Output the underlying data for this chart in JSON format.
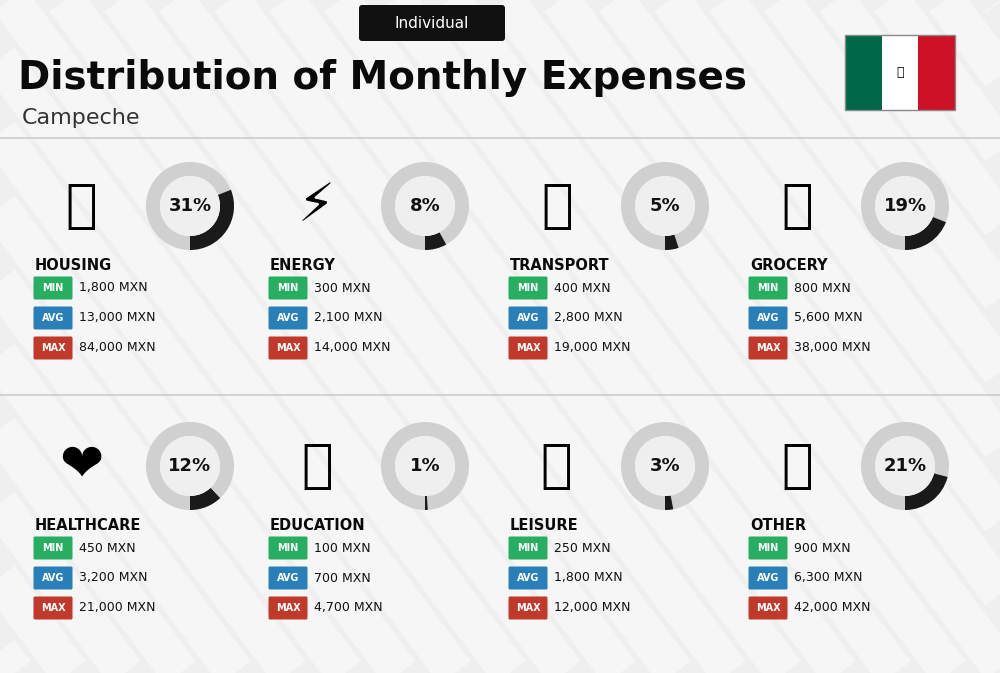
{
  "title": "Distribution of Monthly Expenses",
  "subtitle": "Individual",
  "city": "Campeche",
  "bg_color": "#efefef",
  "categories": [
    {
      "name": "HOUSING",
      "pct": 31,
      "min": "1,800 MXN",
      "avg": "13,000 MXN",
      "max": "84,000 MXN",
      "icon": "🏗️",
      "row": 0,
      "col": 0
    },
    {
      "name": "ENERGY",
      "pct": 8,
      "min": "300 MXN",
      "avg": "2,100 MXN",
      "max": "14,000 MXN",
      "icon": "⚡️",
      "row": 0,
      "col": 1
    },
    {
      "name": "TRANSPORT",
      "pct": 5,
      "min": "400 MXN",
      "avg": "2,800 MXN",
      "max": "19,000 MXN",
      "icon": "🚌",
      "row": 0,
      "col": 2
    },
    {
      "name": "GROCERY",
      "pct": 19,
      "min": "800 MXN",
      "avg": "5,600 MXN",
      "max": "38,000 MXN",
      "icon": "🛒",
      "row": 0,
      "col": 3
    },
    {
      "name": "HEALTHCARE",
      "pct": 12,
      "min": "450 MXN",
      "avg": "3,200 MXN",
      "max": "21,000 MXN",
      "icon": "❤️",
      "row": 1,
      "col": 0
    },
    {
      "name": "EDUCATION",
      "pct": 1,
      "min": "100 MXN",
      "avg": "700 MXN",
      "max": "4,700 MXN",
      "icon": "🎓",
      "row": 1,
      "col": 1
    },
    {
      "name": "LEISURE",
      "pct": 3,
      "min": "250 MXN",
      "avg": "1,800 MXN",
      "max": "12,000 MXN",
      "icon": "🛍️",
      "row": 1,
      "col": 2
    },
    {
      "name": "OTHER",
      "pct": 21,
      "min": "900 MXN",
      "avg": "6,300 MXN",
      "max": "42,000 MXN",
      "icon": "👜",
      "row": 1,
      "col": 3
    }
  ],
  "min_color": "#27ae60",
  "avg_color": "#2980b9",
  "max_color": "#c0392b",
  "text_color": "#111111",
  "donut_bg": "#d0d0d0",
  "donut_fg": "#1a1a1a",
  "flag_green": "#006847",
  "flag_white": "#ffffff",
  "flag_red": "#ce1126",
  "stripe_color": "#ffffff",
  "stripe_alpha": 0.45
}
